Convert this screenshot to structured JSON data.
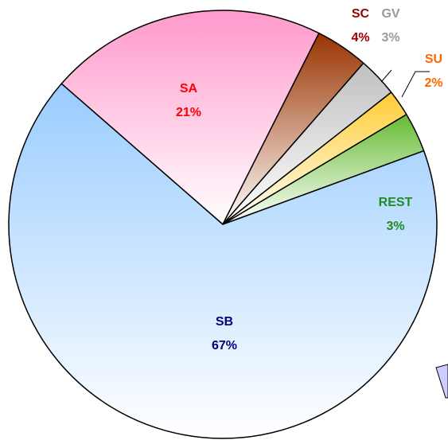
{
  "chart_data": {
    "type": "pie",
    "categories": [
      "SA",
      "SC",
      "GV",
      "SU",
      "REST",
      "SB"
    ],
    "values": [
      21,
      4,
      3,
      2,
      3,
      67
    ],
    "value_labels": [
      "21%",
      "4%",
      "3%",
      "2%",
      "3%",
      "67%"
    ],
    "colors": [
      "#ff99cc",
      "#993300",
      "#c0c0c0",
      "#ffcc33",
      "#66bb33",
      "#99ccff"
    ],
    "label_colors": [
      "#ff0000",
      "#990000",
      "#999999",
      "#ff6600",
      "#228b22",
      "#000080"
    ]
  }
}
